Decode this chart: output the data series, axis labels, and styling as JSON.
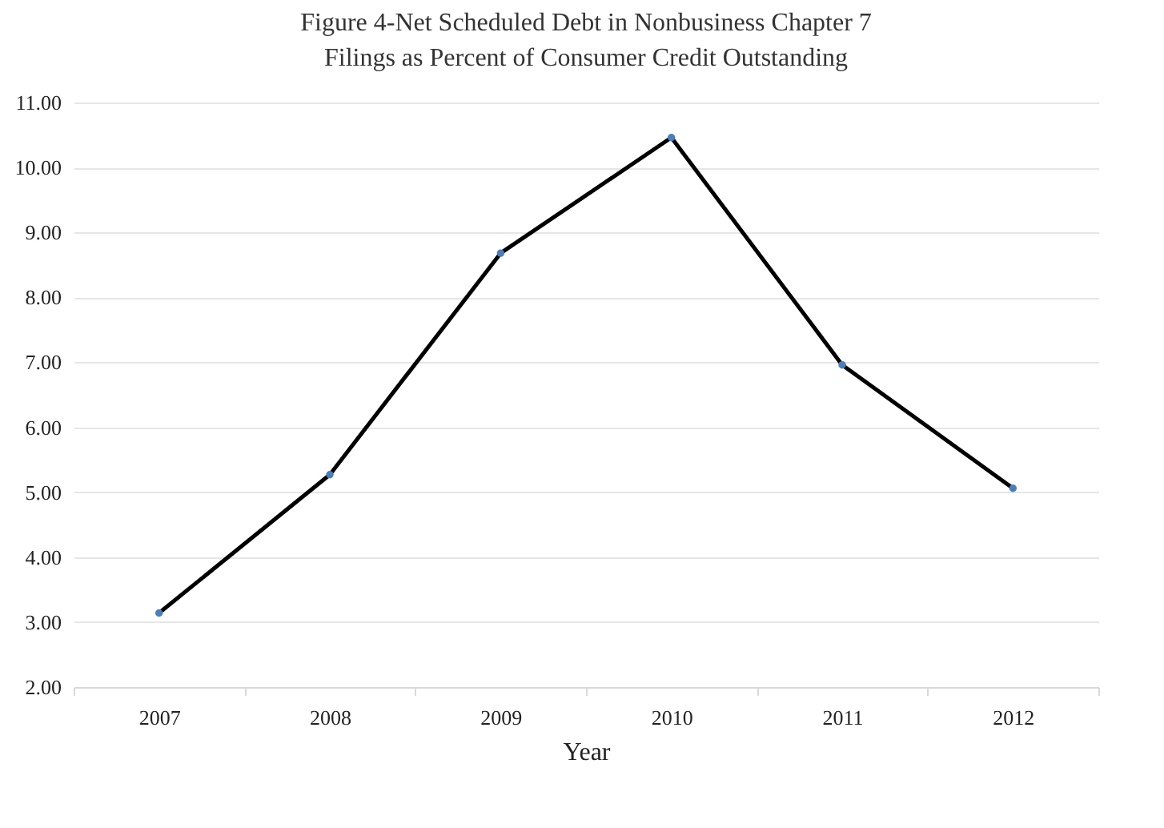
{
  "chart_data": {
    "type": "line",
    "title": "Figure 4-Net Scheduled Debt in Nonbusiness Chapter 7\nFilings as Percent of Consumer Credit Outstanding",
    "xlabel": "Year",
    "categories": [
      "2007",
      "2008",
      "2009",
      "2010",
      "2011",
      "2012"
    ],
    "series": [
      {
        "color": "#000000",
        "values": [
          3.14,
          5.27,
          8.68,
          10.46,
          6.96,
          5.06
        ]
      }
    ],
    "ylim": [
      2,
      11
    ],
    "yticks": [
      {
        "value": 2,
        "label": "2.00"
      },
      {
        "value": 3,
        "label": "3.00"
      },
      {
        "value": 4,
        "label": "4.00"
      },
      {
        "value": 5,
        "label": "5.00"
      },
      {
        "value": 6,
        "label": "6.00"
      },
      {
        "value": 7,
        "label": "7.00"
      },
      {
        "value": 8,
        "label": "8.00"
      },
      {
        "value": 9,
        "label": "9.00"
      },
      {
        "value": 10,
        "label": "10.00"
      },
      {
        "value": 11,
        "label": "11.00"
      }
    ],
    "grid": "y",
    "marker": "circle",
    "line_style": "solid"
  }
}
